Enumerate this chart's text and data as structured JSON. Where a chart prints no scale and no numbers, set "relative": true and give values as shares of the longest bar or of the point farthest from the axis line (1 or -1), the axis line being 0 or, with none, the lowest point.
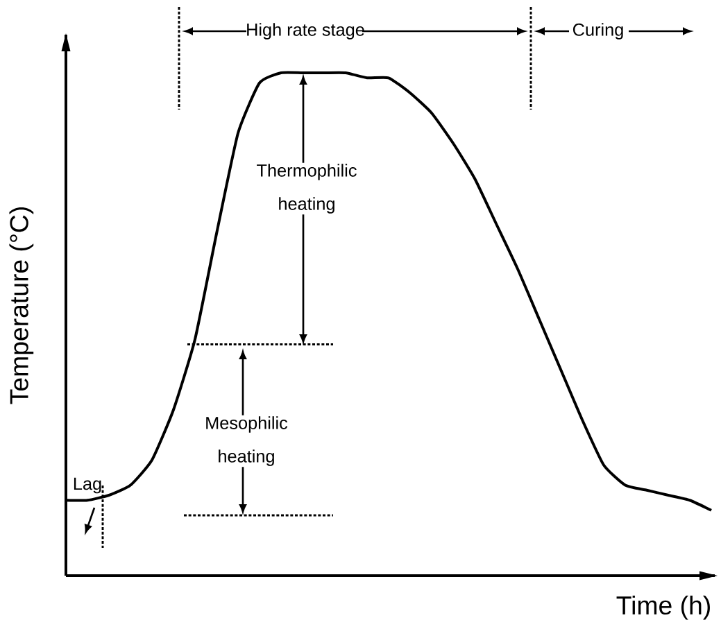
{
  "chart_data": {
    "type": "line",
    "relative": true,
    "xlabel": "Time (h)",
    "ylabel": "Temperature (°C)",
    "categories": [
      null,
      null,
      null,
      null,
      null,
      null,
      null,
      null,
      null,
      null,
      null,
      null,
      null,
      null,
      null,
      null,
      null,
      null,
      null,
      null,
      null,
      null,
      null,
      null,
      null,
      null,
      null,
      null,
      null,
      null,
      null
    ],
    "series": [
      {
        "color": "#000000",
        "values": [
          0.15,
          0.15,
          0.16,
          0.18,
          0.23,
          0.33,
          0.47,
          0.68,
          0.88,
          0.98,
          1.0,
          1.0,
          1.0,
          1.0,
          0.99,
          0.99,
          0.96,
          0.92,
          0.86,
          0.79,
          0.7,
          0.61,
          0.51,
          0.41,
          0.31,
          0.22,
          0.18,
          0.17,
          0.16,
          0.15,
          0.13
        ]
      }
    ],
    "ref_lines": [
      {
        "axis": "y",
        "value": 0.46,
        "line_style": "dotted"
      },
      {
        "axis": "y",
        "value": 0.12,
        "line_style": "dotted"
      }
    ],
    "annotations": [
      "High rate stage",
      "Thermophilic heating",
      "Mesophilic heating",
      "Lag",
      "Curing"
    ]
  }
}
